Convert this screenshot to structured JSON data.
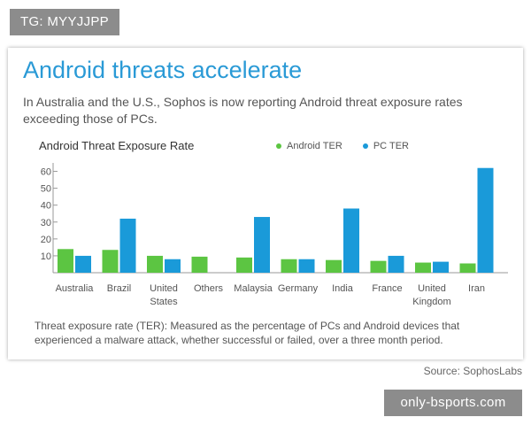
{
  "watermark_top": "TG: MYYJJPP",
  "watermark_bottom": "only-bsports.com",
  "headline": "Android threats accelerate",
  "subhead": "In Australia and the U.S., Sophos is now reporting Android threat exposure rates exceeding those of PCs.",
  "footnote": "Threat exposure rate (TER): Measured as the percentage of PCs and Android devices that experienced a malware attack, whether successful or failed, over a three month period.",
  "source": "Source: SophosLabs",
  "colors": {
    "android": "#5cc542",
    "pc": "#1a9ad9",
    "headline": "#2a9ad6"
  },
  "chart_data": {
    "type": "bar",
    "title": "Android Threat Exposure Rate",
    "categories": [
      "Australia",
      "Brazil",
      "United\nStates",
      "Others",
      "Malaysia",
      "Germany",
      "India",
      "France",
      "United\nKingdom",
      "Iran"
    ],
    "series": [
      {
        "name": "Android TER",
        "color": "#5cc542",
        "values": [
          14,
          13.5,
          10,
          9.5,
          9,
          8,
          7.5,
          7,
          6,
          5.5
        ]
      },
      {
        "name": "PC TER",
        "color": "#1a9ad9",
        "values": [
          10,
          32,
          8,
          0,
          33,
          8,
          38,
          10,
          6.5,
          62
        ]
      }
    ],
    "yticks": [
      10,
      20,
      30,
      40,
      50,
      60
    ],
    "ylim": [
      0,
      65
    ],
    "xlabel": "",
    "ylabel": "",
    "grid": false,
    "legend": "top-right"
  }
}
